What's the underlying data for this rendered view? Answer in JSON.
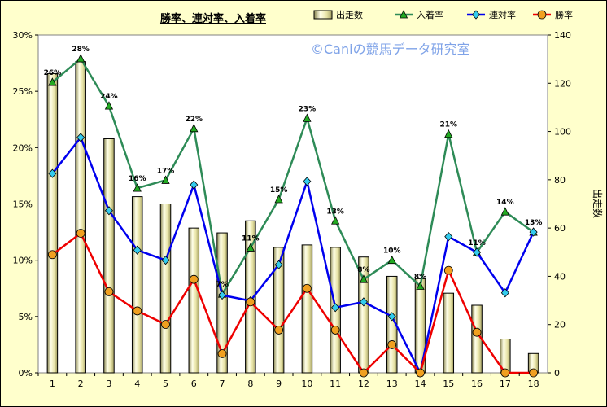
{
  "chart_data": {
    "type": "bar+line",
    "title": "勝率、連対率、入着率",
    "watermark": "©Caniの競馬データ研究室",
    "categories": [
      "1",
      "2",
      "3",
      "4",
      "5",
      "6",
      "7",
      "8",
      "9",
      "10",
      "11",
      "12",
      "13",
      "14",
      "15",
      "16",
      "17",
      "18"
    ],
    "y_left": {
      "ticks": [
        "0%",
        "5%",
        "10%",
        "15%",
        "20%",
        "25%",
        "30%"
      ],
      "ylim": [
        0,
        30
      ]
    },
    "y_right": {
      "label": "出走数",
      "ticks": [
        "0",
        "20",
        "40",
        "60",
        "80",
        "100",
        "120",
        "140"
      ],
      "ylim": [
        0,
        140
      ]
    },
    "bar_series": {
      "name": "出走数",
      "color": "#E8E4A8",
      "values": [
        124,
        129,
        97,
        73,
        70,
        60,
        58,
        63,
        52,
        53,
        52,
        48,
        40,
        39,
        33,
        28,
        14,
        8
      ]
    },
    "line_series": [
      {
        "name": "入着率",
        "color": "#2E8B57",
        "marker": "triangle",
        "marker_color": "#22AA22",
        "values": [
          25.8,
          27.9,
          23.7,
          16.4,
          17.1,
          21.7,
          7.0,
          11.1,
          15.4,
          22.6,
          13.5,
          8.3,
          10.0,
          7.7,
          21.2,
          10.7,
          14.3,
          12.5
        ]
      },
      {
        "name": "連対率",
        "color": "#0000EE",
        "marker": "diamond",
        "marker_color": "#33CCEE",
        "values": [
          17.7,
          20.9,
          14.4,
          10.9,
          10.0,
          16.7,
          6.9,
          6.4,
          9.6,
          17.0,
          5.8,
          6.3,
          5.0,
          0.0,
          12.1,
          10.7,
          7.1,
          12.5
        ]
      },
      {
        "name": "勝率",
        "color": "#EE0000",
        "marker": "circle",
        "marker_color": "#F0A020",
        "values": [
          10.5,
          12.4,
          7.2,
          5.5,
          4.3,
          8.3,
          1.7,
          6.3,
          3.8,
          7.5,
          3.8,
          0.0,
          2.5,
          0.0,
          9.1,
          3.6,
          0.0,
          0.0
        ]
      }
    ],
    "data_labels": [
      "26%",
      "28%",
      "24%",
      "16%",
      "17%",
      "22%",
      "7%",
      "11%",
      "15%",
      "23%",
      "13%",
      "8%",
      "10%",
      "8%",
      "21%",
      "11%",
      "14%",
      "13%"
    ],
    "legend_placement": "top-right",
    "grid": false
  }
}
